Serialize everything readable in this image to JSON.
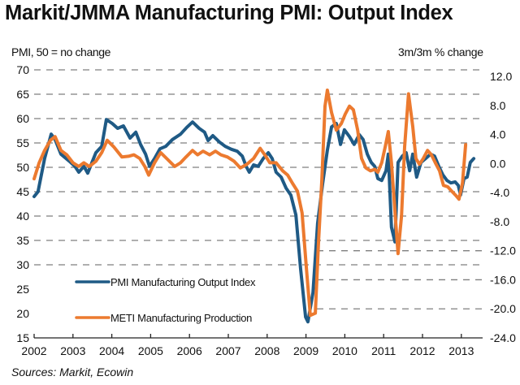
{
  "chart_data": {
    "type": "line",
    "title": "Markit/JMMA Manufacturing PMI: Output Index",
    "ylabel": "PMI, 50 = no change",
    "y2label": "3m/3m % change",
    "xlabel": "",
    "source": "Sources: Markit, Ecowin",
    "xlim": [
      2002,
      2013.55
    ],
    "ylim": [
      15,
      70
    ],
    "y2lim": [
      -24,
      12
    ],
    "x_ticks": [
      "2002",
      "2003",
      "2004",
      "2005",
      "2006",
      "2007",
      "2008",
      "2009",
      "2010",
      "2011",
      "2012",
      "2013"
    ],
    "y_ticks": [
      "70",
      "65",
      "60",
      "55",
      "50",
      "45",
      "40",
      "35",
      "30",
      "25",
      "20",
      "15"
    ],
    "y2_ticks": [
      "12.0",
      "8.0",
      "4.0",
      "0.0",
      "-4.0",
      "-8.0",
      "-12.0",
      "-16.0",
      "-20.0",
      "-24.0"
    ],
    "grid": "horizontal dashed",
    "legend_position": "bottom-left",
    "series": [
      {
        "name": "PMI Manufacturing Output Index",
        "axis": "left",
        "color": "#1f5a85",
        "x": [
          2002.0,
          2002.1,
          2002.27,
          2002.44,
          2002.54,
          2002.69,
          2002.9,
          2003.05,
          2003.15,
          2003.28,
          2003.38,
          2003.49,
          2003.59,
          2003.74,
          2003.86,
          2004.01,
          2004.15,
          2004.3,
          2004.47,
          2004.62,
          2004.74,
          2004.87,
          2004.97,
          2005.1,
          2005.24,
          2005.39,
          2005.56,
          2005.77,
          2005.93,
          2006.08,
          2006.25,
          2006.39,
          2006.48,
          2006.6,
          2006.77,
          2006.92,
          2007.08,
          2007.23,
          2007.36,
          2007.46,
          2007.54,
          2007.65,
          2007.77,
          2007.9,
          2008.03,
          2008.13,
          2008.23,
          2008.36,
          2008.49,
          2008.61,
          2008.74,
          2008.86,
          2008.99,
          2009.05,
          2009.18,
          2009.3,
          2009.43,
          2009.55,
          2009.66,
          2009.78,
          2009.89,
          2009.99,
          2010.12,
          2010.24,
          2010.37,
          2010.47,
          2010.58,
          2010.68,
          2010.77,
          2010.85,
          2010.95,
          2011.06,
          2011.12,
          2011.2,
          2011.29,
          2011.37,
          2011.48,
          2011.58,
          2011.67,
          2011.75,
          2011.85,
          2011.96,
          2012.08,
          2012.21,
          2012.31,
          2012.42,
          2012.52,
          2012.63,
          2012.73,
          2012.84,
          2012.92,
          2012.98,
          2013.07,
          2013.15,
          2013.23,
          2013.32
        ],
        "values": [
          44.0,
          45.0,
          51.8,
          56.8,
          55.7,
          52.7,
          51.3,
          50.2,
          49.0,
          50.2,
          48.8,
          51.0,
          53.0,
          54.3,
          59.8,
          59.0,
          58.0,
          58.5,
          56.0,
          57.2,
          54.7,
          52.7,
          50.2,
          51.8,
          53.8,
          54.3,
          55.7,
          56.8,
          58.2,
          59.3,
          58.0,
          57.2,
          55.5,
          56.5,
          55.2,
          54.3,
          53.7,
          53.3,
          52.3,
          50.2,
          49.0,
          50.5,
          50.2,
          51.8,
          53.0,
          51.8,
          49.0,
          48.0,
          45.7,
          44.3,
          40.2,
          29.3,
          19.3,
          18.3,
          24.3,
          38.5,
          46.8,
          53.5,
          58.3,
          59.0,
          54.7,
          57.7,
          56.3,
          54.7,
          56.7,
          55.7,
          52.7,
          51.0,
          50.2,
          47.7,
          47.3,
          49.3,
          52.7,
          37.7,
          34.7,
          51.0,
          52.3,
          53.0,
          49.3,
          52.7,
          48.0,
          51.0,
          51.8,
          52.7,
          52.3,
          50.2,
          48.5,
          47.3,
          46.8,
          47.0,
          46.3,
          44.3,
          47.7,
          48.0,
          51.0,
          51.8
        ]
      },
      {
        "name": "METI Manufacturing Production",
        "axis": "right",
        "color": "#ec7a2f",
        "x": [
          2002.0,
          2002.13,
          2002.27,
          2002.42,
          2002.54,
          2002.69,
          2002.84,
          2003.0,
          2003.15,
          2003.28,
          2003.42,
          2003.59,
          2003.74,
          2003.88,
          2004.05,
          2004.26,
          2004.43,
          2004.57,
          2004.72,
          2004.85,
          2004.95,
          2005.1,
          2005.26,
          2005.43,
          2005.62,
          2005.77,
          2005.91,
          2006.08,
          2006.21,
          2006.35,
          2006.52,
          2006.67,
          2006.81,
          2006.98,
          2007.15,
          2007.31,
          2007.48,
          2007.65,
          2007.82,
          2007.94,
          2008.07,
          2008.23,
          2008.4,
          2008.53,
          2008.65,
          2008.78,
          2008.9,
          2009.01,
          2009.11,
          2009.24,
          2009.32,
          2009.41,
          2009.49,
          2009.55,
          2009.66,
          2009.78,
          2009.91,
          2010.01,
          2010.12,
          2010.22,
          2010.33,
          2010.43,
          2010.54,
          2010.66,
          2010.77,
          2010.85,
          2010.95,
          2011.04,
          2011.12,
          2011.2,
          2011.29,
          2011.37,
          2011.46,
          2011.54,
          2011.64,
          2011.75,
          2011.83,
          2011.92,
          2012.02,
          2012.13,
          2012.23,
          2012.33,
          2012.44,
          2012.54,
          2012.65,
          2012.75,
          2012.86,
          2012.94,
          2013.03,
          2013.11
        ],
        "values": [
          -2.1,
          0.1,
          1.8,
          3.2,
          3.7,
          1.8,
          1.2,
          0.1,
          -0.4,
          0.1,
          -0.4,
          0.3,
          1.5,
          3.2,
          2.3,
          0.9,
          1.0,
          1.2,
          0.7,
          -0.4,
          -1.6,
          0.1,
          1.5,
          0.6,
          -0.4,
          0.1,
          0.9,
          1.8,
          1.2,
          1.7,
          1.2,
          1.7,
          1.2,
          0.9,
          0.3,
          -0.6,
          -0.1,
          0.7,
          2.1,
          1.2,
          0.1,
          0.1,
          -1.0,
          -1.6,
          -2.7,
          -3.8,
          -6.8,
          -14.4,
          -20.9,
          -20.6,
          -11.1,
          -2.1,
          7.9,
          10.1,
          7.0,
          4.6,
          5.5,
          6.8,
          7.9,
          7.4,
          4.6,
          0.7,
          -0.6,
          -1.0,
          -0.8,
          -1.2,
          0.1,
          2.3,
          4.4,
          0.1,
          -6.6,
          -12.4,
          -7.2,
          2.3,
          9.6,
          5.1,
          0.7,
          -0.1,
          0.7,
          1.8,
          1.2,
          0.1,
          -1.0,
          -3.0,
          -3.2,
          -3.8,
          -4.4,
          -4.9,
          -2.7,
          2.6
        ]
      }
    ]
  }
}
